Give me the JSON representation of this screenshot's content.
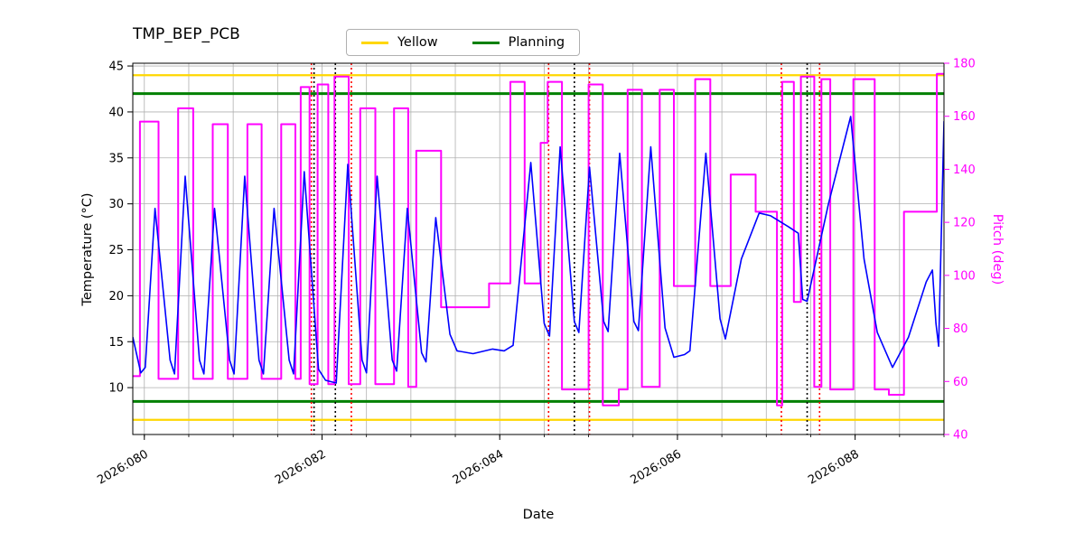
{
  "title": "TMP_BEP_PCB",
  "legend": {
    "items": [
      {
        "label": "Yellow",
        "color": "#ffd700"
      },
      {
        "label": "Planning",
        "color": "#008000"
      }
    ]
  },
  "axes": {
    "x": {
      "label": "Date",
      "min": 79.87,
      "max": 89.0,
      "grid_start": 80.0,
      "grid_end": 89.0,
      "grid_step": 0.5,
      "ticks": [
        {
          "value": 80,
          "label": "2026:080"
        },
        {
          "value": 82,
          "label": "2026:082"
        },
        {
          "value": 84,
          "label": "2026:084"
        },
        {
          "value": 86,
          "label": "2026:086"
        },
        {
          "value": 88,
          "label": "2026:088"
        }
      ]
    },
    "y_left": {
      "label": "Temperature (°C)",
      "min": 4.9,
      "max": 45.3,
      "ticks": [
        {
          "value": 45,
          "label": "45"
        },
        {
          "value": 40,
          "label": "40"
        },
        {
          "value": 35,
          "label": "35"
        },
        {
          "value": 30,
          "label": "30"
        },
        {
          "value": 25,
          "label": "25"
        },
        {
          "value": 20,
          "label": "20"
        },
        {
          "value": 15,
          "label": "15"
        },
        {
          "value": 10,
          "label": "10"
        }
      ]
    },
    "y_right": {
      "label": "Pitch (deg)",
      "color": "#ff00ff",
      "min": 40,
      "max": 180,
      "ticks": [
        {
          "value": 180,
          "label": "180"
        },
        {
          "value": 160,
          "label": "160"
        },
        {
          "value": 140,
          "label": "140"
        },
        {
          "value": 120,
          "label": "120"
        },
        {
          "value": 100,
          "label": "100"
        },
        {
          "value": 80,
          "label": "80"
        },
        {
          "value": 60,
          "label": "60"
        },
        {
          "value": 40,
          "label": "40"
        }
      ]
    }
  },
  "chart_data": {
    "type": "line",
    "title": "TMP_BEP_PCB",
    "xlabel": "Date",
    "ylabel_left": "Temperature (°C)",
    "ylabel_right": "Pitch (deg)",
    "xlim": [
      79.87,
      89.0
    ],
    "ylim_left": [
      4.9,
      45.3
    ],
    "ylim_right": [
      40,
      180
    ],
    "grid": true,
    "legend_position": "top-center",
    "hlines": [
      {
        "name": "yellow_upper",
        "y": 44.0,
        "color": "#ffd700",
        "width": 2.2
      },
      {
        "name": "yellow_lower",
        "y": 6.5,
        "color": "#ffd700",
        "width": 2.2
      },
      {
        "name": "planning_upper",
        "y": 42.0,
        "color": "#008000",
        "width": 3
      },
      {
        "name": "planning_lower",
        "y": 8.5,
        "color": "#008000",
        "width": 3
      }
    ],
    "vlines": [
      {
        "x": 81.88,
        "color": "#ff0000"
      },
      {
        "x": 81.91,
        "color": "#000000"
      },
      {
        "x": 82.15,
        "color": "#000000"
      },
      {
        "x": 82.33,
        "color": "#ff0000"
      },
      {
        "x": 84.55,
        "color": "#ff0000"
      },
      {
        "x": 84.84,
        "color": "#000000"
      },
      {
        "x": 85.01,
        "color": "#ff0000"
      },
      {
        "x": 87.17,
        "color": "#ff0000"
      },
      {
        "x": 87.46,
        "color": "#000000"
      },
      {
        "x": 87.6,
        "color": "#ff0000"
      }
    ],
    "series": [
      {
        "name": "Pitch",
        "axis": "right",
        "color": "#ff00ff",
        "width": 2,
        "points": [
          [
            79.87,
            62
          ],
          [
            79.95,
            62
          ],
          [
            79.95,
            158
          ],
          [
            80.16,
            158
          ],
          [
            80.16,
            61
          ],
          [
            80.38,
            61
          ],
          [
            80.38,
            163
          ],
          [
            80.55,
            163
          ],
          [
            80.55,
            61
          ],
          [
            80.77,
            61
          ],
          [
            80.77,
            157
          ],
          [
            80.94,
            157
          ],
          [
            80.94,
            61
          ],
          [
            81.16,
            61
          ],
          [
            81.16,
            157
          ],
          [
            81.32,
            157
          ],
          [
            81.32,
            61
          ],
          [
            81.54,
            61
          ],
          [
            81.54,
            157
          ],
          [
            81.7,
            157
          ],
          [
            81.7,
            61
          ],
          [
            81.76,
            61
          ],
          [
            81.76,
            171
          ],
          [
            81.86,
            171
          ],
          [
            81.86,
            59
          ],
          [
            81.95,
            59
          ],
          [
            81.95,
            172
          ],
          [
            82.07,
            172
          ],
          [
            82.07,
            59
          ],
          [
            82.14,
            59
          ],
          [
            82.14,
            175
          ],
          [
            82.3,
            175
          ],
          [
            82.3,
            59
          ],
          [
            82.43,
            59
          ],
          [
            82.43,
            163
          ],
          [
            82.6,
            163
          ],
          [
            82.6,
            59
          ],
          [
            82.81,
            59
          ],
          [
            82.81,
            163
          ],
          [
            82.97,
            163
          ],
          [
            82.97,
            58
          ],
          [
            83.06,
            58
          ],
          [
            83.06,
            147
          ],
          [
            83.34,
            147
          ],
          [
            83.34,
            88
          ],
          [
            83.88,
            88
          ],
          [
            83.88,
            97
          ],
          [
            84.12,
            97
          ],
          [
            84.12,
            173
          ],
          [
            84.28,
            173
          ],
          [
            84.28,
            97
          ],
          [
            84.46,
            97
          ],
          [
            84.46,
            150
          ],
          [
            84.54,
            150
          ],
          [
            84.54,
            173
          ],
          [
            84.7,
            173
          ],
          [
            84.7,
            57
          ],
          [
            85.0,
            57
          ],
          [
            85.0,
            172
          ],
          [
            85.16,
            172
          ],
          [
            85.16,
            51
          ],
          [
            85.34,
            51
          ],
          [
            85.34,
            57
          ],
          [
            85.44,
            57
          ],
          [
            85.44,
            170
          ],
          [
            85.6,
            170
          ],
          [
            85.6,
            58
          ],
          [
            85.8,
            58
          ],
          [
            85.8,
            170
          ],
          [
            85.96,
            170
          ],
          [
            85.96,
            96
          ],
          [
            86.2,
            96
          ],
          [
            86.2,
            174
          ],
          [
            86.37,
            174
          ],
          [
            86.37,
            96
          ],
          [
            86.6,
            96
          ],
          [
            86.6,
            138
          ],
          [
            86.88,
            138
          ],
          [
            86.88,
            124
          ],
          [
            87.12,
            124
          ],
          [
            87.12,
            51
          ],
          [
            87.18,
            51
          ],
          [
            87.18,
            173
          ],
          [
            87.31,
            173
          ],
          [
            87.31,
            90
          ],
          [
            87.39,
            90
          ],
          [
            87.39,
            175
          ],
          [
            87.54,
            175
          ],
          [
            87.54,
            58
          ],
          [
            87.62,
            58
          ],
          [
            87.62,
            174
          ],
          [
            87.72,
            174
          ],
          [
            87.72,
            57
          ],
          [
            87.98,
            57
          ],
          [
            87.98,
            174
          ],
          [
            88.22,
            174
          ],
          [
            88.22,
            57
          ],
          [
            88.38,
            57
          ],
          [
            88.38,
            55
          ],
          [
            88.55,
            55
          ],
          [
            88.55,
            124
          ],
          [
            88.92,
            124
          ],
          [
            88.92,
            176
          ],
          [
            89.0,
            176
          ]
        ]
      },
      {
        "name": "Temperature",
        "axis": "left",
        "color": "#0000ff",
        "width": 1.6,
        "points": [
          [
            79.87,
            15.5
          ],
          [
            79.96,
            11.6
          ],
          [
            80.01,
            12.2
          ],
          [
            80.12,
            29.5
          ],
          [
            80.29,
            13.0
          ],
          [
            80.34,
            11.5
          ],
          [
            80.46,
            33.0
          ],
          [
            80.62,
            13.0
          ],
          [
            80.67,
            11.5
          ],
          [
            80.79,
            29.5
          ],
          [
            80.96,
            13.0
          ],
          [
            81.01,
            11.5
          ],
          [
            81.13,
            33.0
          ],
          [
            81.29,
            13.0
          ],
          [
            81.34,
            11.5
          ],
          [
            81.46,
            29.5
          ],
          [
            81.63,
            13.0
          ],
          [
            81.68,
            11.5
          ],
          [
            81.8,
            33.5
          ],
          [
            81.96,
            12.0
          ],
          [
            82.04,
            10.8
          ],
          [
            82.16,
            10.5
          ],
          [
            82.29,
            34.3
          ],
          [
            82.45,
            13.0
          ],
          [
            82.5,
            11.6
          ],
          [
            82.62,
            33.0
          ],
          [
            82.79,
            13.0
          ],
          [
            82.84,
            11.8
          ],
          [
            82.96,
            29.5
          ],
          [
            83.12,
            13.8
          ],
          [
            83.17,
            12.8
          ],
          [
            83.28,
            28.5
          ],
          [
            83.44,
            15.8
          ],
          [
            83.52,
            14.0
          ],
          [
            83.7,
            13.7
          ],
          [
            83.92,
            14.2
          ],
          [
            84.05,
            14.0
          ],
          [
            84.15,
            14.6
          ],
          [
            84.35,
            34.5
          ],
          [
            84.5,
            17.0
          ],
          [
            84.56,
            15.6
          ],
          [
            84.68,
            36.2
          ],
          [
            84.84,
            17.2
          ],
          [
            84.89,
            16.0
          ],
          [
            85.01,
            34.0
          ],
          [
            85.17,
            17.2
          ],
          [
            85.22,
            16.1
          ],
          [
            85.35,
            35.5
          ],
          [
            85.51,
            17.2
          ],
          [
            85.56,
            16.2
          ],
          [
            85.7,
            36.2
          ],
          [
            85.86,
            16.5
          ],
          [
            85.96,
            13.3
          ],
          [
            86.08,
            13.6
          ],
          [
            86.14,
            14.0
          ],
          [
            86.32,
            35.5
          ],
          [
            86.48,
            17.5
          ],
          [
            86.54,
            15.3
          ],
          [
            86.72,
            24.0
          ],
          [
            86.92,
            29.0
          ],
          [
            87.05,
            28.7
          ],
          [
            87.25,
            27.5
          ],
          [
            87.36,
            26.8
          ],
          [
            87.41,
            19.6
          ],
          [
            87.46,
            19.4
          ],
          [
            87.7,
            30.0
          ],
          [
            87.95,
            39.5
          ],
          [
            88.1,
            24.0
          ],
          [
            88.25,
            16.0
          ],
          [
            88.42,
            12.2
          ],
          [
            88.6,
            15.5
          ],
          [
            88.8,
            21.5
          ],
          [
            88.87,
            22.8
          ],
          [
            88.91,
            17.0
          ],
          [
            88.94,
            14.5
          ],
          [
            89.0,
            39.0
          ]
        ]
      }
    ]
  },
  "colors": {
    "grid": "#b0b0b0",
    "temperature": "#0000ff",
    "pitch": "#ff00ff",
    "yellow_limit": "#ffd700",
    "planning_limit": "#008000"
  }
}
